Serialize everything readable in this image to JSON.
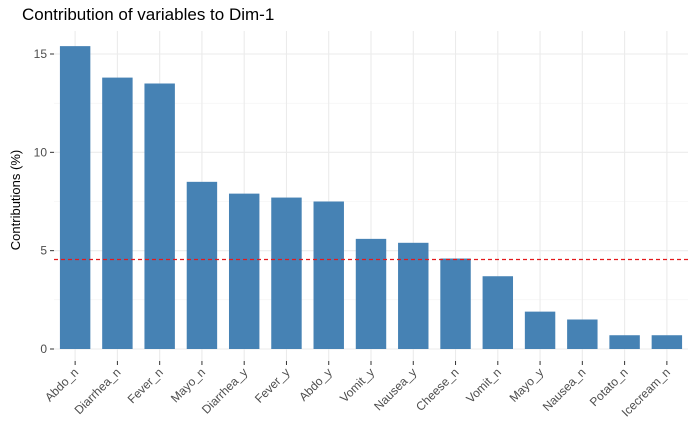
{
  "chart_data": {
    "type": "bar",
    "title": "Contribution of variables to Dim-1",
    "xlabel": "",
    "ylabel": "Contributions (%)",
    "categories": [
      "Abdo_n",
      "Diarrhea_n",
      "Fever_n",
      "Mayo_n",
      "Diarrhea_y",
      "Fever_y",
      "Abdo_y",
      "Vomit_y",
      "Nausea_y",
      "Cheese_n",
      "Vomit_n",
      "Mayo_y",
      "Nausea_n",
      "Potato_n",
      "Icecream_n"
    ],
    "values": [
      15.4,
      13.8,
      13.5,
      8.5,
      7.9,
      7.7,
      7.5,
      5.6,
      5.4,
      4.6,
      3.7,
      1.9,
      1.5,
      0.7,
      0.7
    ],
    "ylim": [
      0,
      15.9
    ],
    "yticks": [
      0,
      5,
      10,
      15
    ],
    "reference_line": {
      "value": 4.55,
      "style": "dashed",
      "color": "#e41a1c"
    },
    "bar_color": "#4682b4",
    "grid": true,
    "legend": "none"
  }
}
